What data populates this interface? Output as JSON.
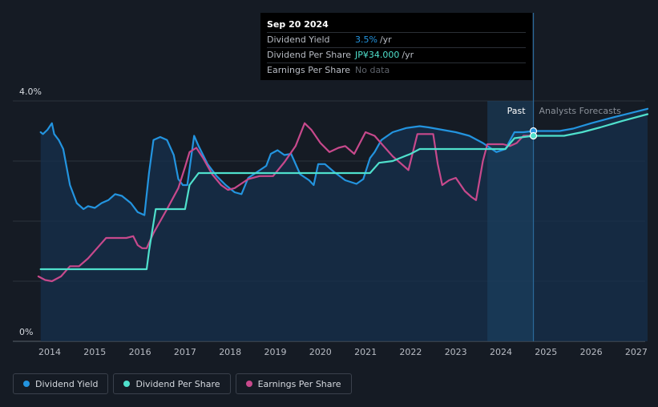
{
  "chart_data": {
    "type": "line",
    "y_axis": {
      "top_label": "4.0%",
      "bottom_label": "0%",
      "ylim": [
        0,
        4.0
      ]
    },
    "x_axis": {
      "tick_labels": [
        "2014",
        "2015",
        "2016",
        "2017",
        "2018",
        "2019",
        "2020",
        "2021",
        "2022",
        "2023",
        "2024",
        "2025",
        "2026",
        "2027"
      ],
      "xlim": [
        2013.75,
        2027.25
      ]
    },
    "past_label": "Past",
    "forecast_label": "Analysts Forecasts",
    "past_boundary_year": 2024.72,
    "forecast_shade_start_year": 2023.7,
    "series": [
      {
        "name": "Dividend Yield",
        "color": "#2394df",
        "points": [
          [
            2013.8,
            3.48
          ],
          [
            2013.85,
            3.45
          ],
          [
            2013.95,
            3.52
          ],
          [
            2014.05,
            3.63
          ],
          [
            2014.1,
            3.45
          ],
          [
            2014.2,
            3.35
          ],
          [
            2014.3,
            3.2
          ],
          [
            2014.45,
            2.6
          ],
          [
            2014.6,
            2.3
          ],
          [
            2014.75,
            2.2
          ],
          [
            2014.85,
            2.25
          ],
          [
            2015.0,
            2.22
          ],
          [
            2015.15,
            2.3
          ],
          [
            2015.3,
            2.35
          ],
          [
            2015.45,
            2.45
          ],
          [
            2015.6,
            2.42
          ],
          [
            2015.8,
            2.3
          ],
          [
            2015.95,
            2.15
          ],
          [
            2016.1,
            2.1
          ],
          [
            2016.2,
            2.8
          ],
          [
            2016.3,
            3.35
          ],
          [
            2016.45,
            3.4
          ],
          [
            2016.6,
            3.35
          ],
          [
            2016.75,
            3.1
          ],
          [
            2016.85,
            2.7
          ],
          [
            2016.95,
            2.6
          ],
          [
            2017.05,
            2.6
          ],
          [
            2017.2,
            3.42
          ],
          [
            2017.3,
            3.25
          ],
          [
            2017.5,
            2.95
          ],
          [
            2017.7,
            2.75
          ],
          [
            2017.9,
            2.6
          ],
          [
            2018.1,
            2.48
          ],
          [
            2018.25,
            2.45
          ],
          [
            2018.4,
            2.72
          ],
          [
            2018.6,
            2.82
          ],
          [
            2018.8,
            2.92
          ],
          [
            2018.9,
            3.12
          ],
          [
            2019.05,
            3.18
          ],
          [
            2019.2,
            3.1
          ],
          [
            2019.35,
            3.12
          ],
          [
            2019.55,
            2.78
          ],
          [
            2019.75,
            2.68
          ],
          [
            2019.85,
            2.6
          ],
          [
            2019.95,
            2.95
          ],
          [
            2020.1,
            2.95
          ],
          [
            2020.3,
            2.82
          ],
          [
            2020.55,
            2.68
          ],
          [
            2020.8,
            2.62
          ],
          [
            2020.95,
            2.7
          ],
          [
            2021.1,
            3.05
          ],
          [
            2021.2,
            3.15
          ],
          [
            2021.35,
            3.35
          ],
          [
            2021.6,
            3.48
          ],
          [
            2021.9,
            3.55
          ],
          [
            2022.2,
            3.58
          ],
          [
            2022.4,
            3.56
          ],
          [
            2022.7,
            3.52
          ],
          [
            2023.0,
            3.48
          ],
          [
            2023.3,
            3.42
          ],
          [
            2023.6,
            3.3
          ],
          [
            2023.9,
            3.15
          ],
          [
            2024.1,
            3.2
          ],
          [
            2024.3,
            3.48
          ],
          [
            2024.5,
            3.48
          ],
          [
            2024.72,
            3.5
          ],
          [
            2025.3,
            3.5
          ],
          [
            2025.6,
            3.54
          ],
          [
            2026.0,
            3.63
          ],
          [
            2026.5,
            3.73
          ],
          [
            2027.25,
            3.87
          ]
        ]
      },
      {
        "name": "Dividend Per Share",
        "color": "#4fe0cc",
        "points": [
          [
            2013.8,
            1.2
          ],
          [
            2016.15,
            1.2
          ],
          [
            2016.2,
            1.5
          ],
          [
            2016.35,
            2.2
          ],
          [
            2017.0,
            2.2
          ],
          [
            2017.1,
            2.6
          ],
          [
            2017.3,
            2.8
          ],
          [
            2021.1,
            2.8
          ],
          [
            2021.3,
            2.97
          ],
          [
            2021.6,
            3.0
          ],
          [
            2022.0,
            3.12
          ],
          [
            2022.2,
            3.2
          ],
          [
            2022.5,
            3.2
          ],
          [
            2024.1,
            3.2
          ],
          [
            2024.3,
            3.38
          ],
          [
            2024.72,
            3.42
          ],
          [
            2025.4,
            3.42
          ],
          [
            2025.8,
            3.48
          ],
          [
            2026.2,
            3.56
          ],
          [
            2026.7,
            3.67
          ],
          [
            2027.25,
            3.78
          ]
        ]
      },
      {
        "name": "Earnings Per Share",
        "color": "#c7498c",
        "points": [
          [
            2013.75,
            1.08
          ],
          [
            2013.9,
            1.02
          ],
          [
            2014.05,
            1.0
          ],
          [
            2014.25,
            1.08
          ],
          [
            2014.45,
            1.25
          ],
          [
            2014.65,
            1.25
          ],
          [
            2014.85,
            1.38
          ],
          [
            2015.05,
            1.55
          ],
          [
            2015.25,
            1.72
          ],
          [
            2015.7,
            1.72
          ],
          [
            2015.85,
            1.75
          ],
          [
            2015.95,
            1.6
          ],
          [
            2016.05,
            1.55
          ],
          [
            2016.15,
            1.55
          ],
          [
            2016.3,
            1.8
          ],
          [
            2016.6,
            2.2
          ],
          [
            2016.85,
            2.55
          ],
          [
            2017.0,
            2.9
          ],
          [
            2017.1,
            3.15
          ],
          [
            2017.25,
            3.22
          ],
          [
            2017.4,
            3.05
          ],
          [
            2017.6,
            2.78
          ],
          [
            2017.8,
            2.6
          ],
          [
            2017.95,
            2.52
          ],
          [
            2018.1,
            2.55
          ],
          [
            2018.4,
            2.7
          ],
          [
            2018.65,
            2.75
          ],
          [
            2018.95,
            2.75
          ],
          [
            2019.2,
            2.98
          ],
          [
            2019.45,
            3.25
          ],
          [
            2019.65,
            3.63
          ],
          [
            2019.8,
            3.52
          ],
          [
            2020.0,
            3.3
          ],
          [
            2020.2,
            3.15
          ],
          [
            2020.4,
            3.22
          ],
          [
            2020.55,
            3.25
          ],
          [
            2020.75,
            3.12
          ],
          [
            2021.0,
            3.48
          ],
          [
            2021.2,
            3.42
          ],
          [
            2021.4,
            3.25
          ],
          [
            2021.6,
            3.08
          ],
          [
            2021.8,
            2.95
          ],
          [
            2021.95,
            2.85
          ],
          [
            2022.15,
            3.45
          ],
          [
            2022.5,
            3.45
          ],
          [
            2022.6,
            2.95
          ],
          [
            2022.7,
            2.6
          ],
          [
            2022.85,
            2.68
          ],
          [
            2023.0,
            2.72
          ],
          [
            2023.2,
            2.5
          ],
          [
            2023.35,
            2.4
          ],
          [
            2023.45,
            2.35
          ],
          [
            2023.6,
            3.0
          ],
          [
            2023.7,
            3.28
          ],
          [
            2023.85,
            3.28
          ],
          [
            2024.05,
            3.28
          ],
          [
            2024.2,
            3.25
          ],
          [
            2024.35,
            3.3
          ],
          [
            2024.5,
            3.42
          ],
          [
            2024.72,
            3.42
          ]
        ]
      }
    ]
  },
  "tooltip": {
    "date": "Sep 20 2024",
    "rows": [
      {
        "label": "Dividend Yield",
        "value": "3.5%",
        "unit": "/yr",
        "color": "#2394df"
      },
      {
        "label": "Dividend Per Share",
        "value": "JP¥34.000",
        "unit": "/yr",
        "color": "#4fe0cc"
      },
      {
        "label": "Earnings Per Share",
        "value": "No data",
        "unit": "",
        "color": "#5e636b"
      }
    ]
  },
  "legend": [
    {
      "label": "Dividend Yield",
      "color": "#2394df"
    },
    {
      "label": "Dividend Per Share",
      "color": "#4fe0cc"
    },
    {
      "label": "Earnings Per Share",
      "color": "#c7498c"
    }
  ]
}
